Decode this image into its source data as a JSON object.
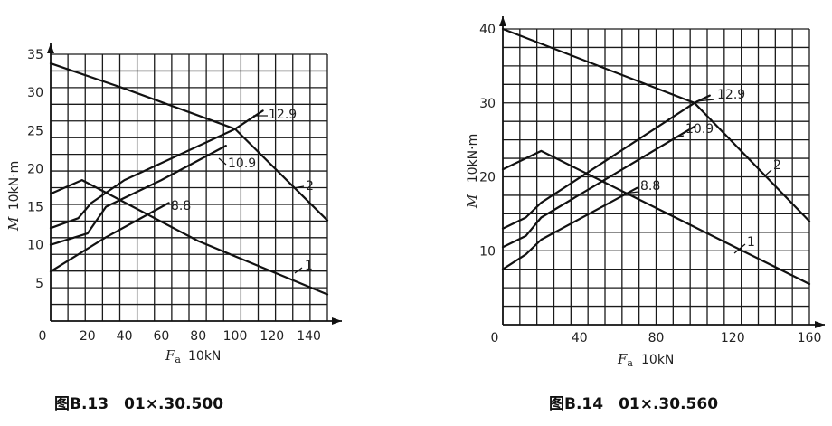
{
  "chart_data": [
    {
      "type": "line",
      "caption": "图B.13　01×.30.500",
      "ylabel_symbol": "M",
      "ylabel_unit": "10kN·m",
      "xlabel_symbol": "Fa",
      "xlabel_unit": "10kN",
      "xlim": [
        0,
        150
      ],
      "ylim": [
        0,
        35
      ],
      "x_ticks": [
        0,
        20,
        40,
        60,
        80,
        100,
        120,
        140
      ],
      "y_ticks": [
        5,
        10,
        15,
        20,
        25,
        30,
        35
      ],
      "grid": true,
      "series": [
        {
          "name": "2",
          "points": [
            [
              0,
              33.8
            ],
            [
              40,
              30.5
            ],
            [
              100,
              25.2
            ],
            [
              150,
              13.2
            ]
          ]
        },
        {
          "name": "1",
          "points": [
            [
              0,
              16.7
            ],
            [
              17,
              18.5
            ],
            [
              80,
              10.5
            ],
            [
              150,
              3.5
            ]
          ]
        },
        {
          "name": "12.9",
          "points": [
            [
              0,
              12.2
            ],
            [
              15,
              13.5
            ],
            [
              22,
              15.5
            ],
            [
              40,
              18.5
            ],
            [
              100,
              25.2
            ],
            [
              115,
              27.6
            ]
          ]
        },
        {
          "name": "10.9",
          "points": [
            [
              0,
              10.0
            ],
            [
              20,
              11.5
            ],
            [
              30,
              15.0
            ],
            [
              60,
              18.5
            ],
            [
              95,
              23.0
            ]
          ]
        },
        {
          "name": "8.8",
          "points": [
            [
              0,
              6.5
            ],
            [
              30,
              11.0
            ],
            [
              64,
              15.5
            ]
          ]
        }
      ]
    },
    {
      "type": "line",
      "caption": "图B.14　01×.30.560",
      "ylabel_symbol": "M",
      "ylabel_unit": "10kN·m",
      "xlabel_symbol": "Fa",
      "xlabel_unit": "10kN",
      "xlim": [
        0,
        160
      ],
      "ylim": [
        0,
        40
      ],
      "x_ticks": [
        0,
        40,
        80,
        120,
        160
      ],
      "y_ticks": [
        10,
        20,
        30,
        40
      ],
      "grid": true,
      "series": [
        {
          "name": "2",
          "points": [
            [
              0,
              40.0
            ],
            [
              100,
              30.0
            ],
            [
              160,
              14.0
            ]
          ]
        },
        {
          "name": "1",
          "points": [
            [
              0,
              21.0
            ],
            [
              20,
              23.5
            ],
            [
              160,
              5.5
            ]
          ]
        },
        {
          "name": "12.9",
          "points": [
            [
              0,
              13.0
            ],
            [
              12,
              14.5
            ],
            [
              20,
              16.5
            ],
            [
              100,
              30.0
            ],
            [
              108,
              31.0
            ]
          ]
        },
        {
          "name": "10.9",
          "points": [
            [
              0,
              10.5
            ],
            [
              12,
              12.0
            ],
            [
              20,
              14.5
            ],
            [
              100,
              26.8
            ]
          ]
        },
        {
          "name": "8.8",
          "points": [
            [
              0,
              7.5
            ],
            [
              12,
              9.5
            ],
            [
              20,
              11.5
            ],
            [
              70,
              18.5
            ]
          ]
        }
      ]
    }
  ]
}
